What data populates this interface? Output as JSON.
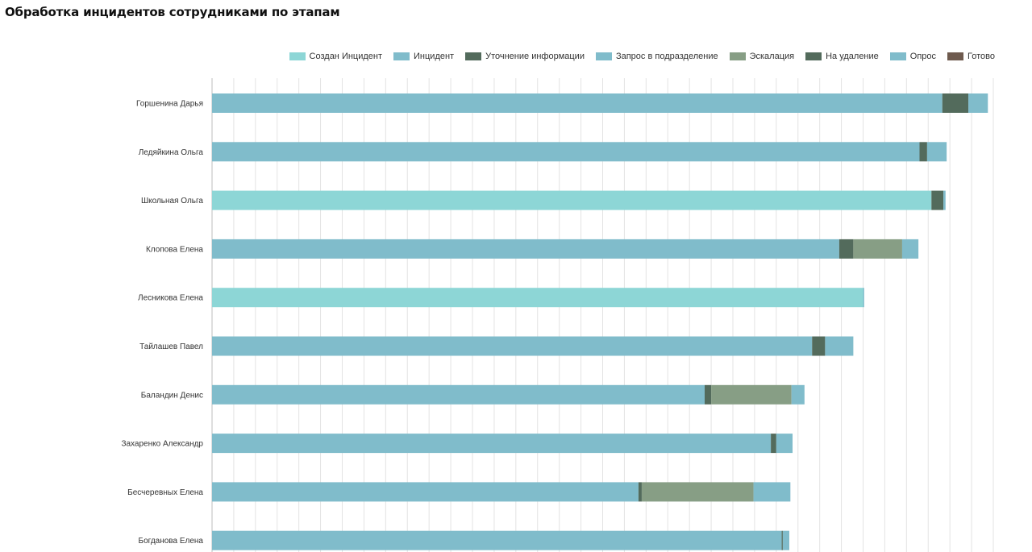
{
  "title": "Обработка инцидентов сотрудниками по этапам",
  "chart_data": {
    "type": "bar",
    "orientation": "horizontal",
    "stacked": true,
    "title": "Обработка инцидентов сотрудниками по этапам",
    "xlabel": "",
    "ylabel": "",
    "grid": true,
    "legend_position": "top-right",
    "xlim": [
      0,
      36
    ],
    "categories": [
      "Горшенина Дарья",
      "Ледяйкина Ольга",
      "Школьная Ольга",
      "Клопова Елена",
      "Лесникова Елена",
      "Тайлашев Павел",
      "Баландин Денис",
      "Захаренко Александр",
      "Бесчеревных Елена",
      "Богданова Елена"
    ],
    "series": [
      {
        "name": "Создан Инцидент",
        "color": "#8dd6d6",
        "values": [
          0,
          0,
          33.15,
          0,
          30.0,
          0,
          0,
          0,
          0,
          0
        ]
      },
      {
        "name": "Инцидент",
        "color": "#80bccb",
        "values": [
          33.65,
          32.6,
          0,
          28.9,
          0,
          27.65,
          22.7,
          25.75,
          19.65,
          26.25
        ]
      },
      {
        "name": "Уточнение информации",
        "color": "#536b5c",
        "values": [
          0,
          0.35,
          0,
          0.65,
          0,
          0.6,
          0.3,
          0.25,
          0.15,
          0.05
        ]
      },
      {
        "name": "Запрос в подразделение",
        "color": "#80bccb",
        "values": [
          0,
          0,
          0,
          0,
          0,
          0,
          0,
          0,
          0,
          0
        ]
      },
      {
        "name": "Эскалация",
        "color": "#879e85",
        "values": [
          0,
          0,
          0,
          2.25,
          0,
          0,
          3.7,
          0,
          5.15,
          0
        ]
      },
      {
        "name": "На удаление",
        "color": "#536b5c",
        "values": [
          1.2,
          0,
          0.55,
          0,
          0,
          0,
          0,
          0,
          0,
          0
        ]
      },
      {
        "name": "Опрос",
        "color": "#80bccb",
        "values": [
          0.9,
          0.9,
          0.1,
          0.75,
          0.05,
          1.3,
          0.6,
          0.75,
          1.7,
          0.3
        ]
      },
      {
        "name": "Готово",
        "color": "#6e5a4e",
        "values": [
          0,
          0,
          0,
          0,
          0,
          0,
          0,
          0,
          0,
          0
        ]
      }
    ]
  }
}
